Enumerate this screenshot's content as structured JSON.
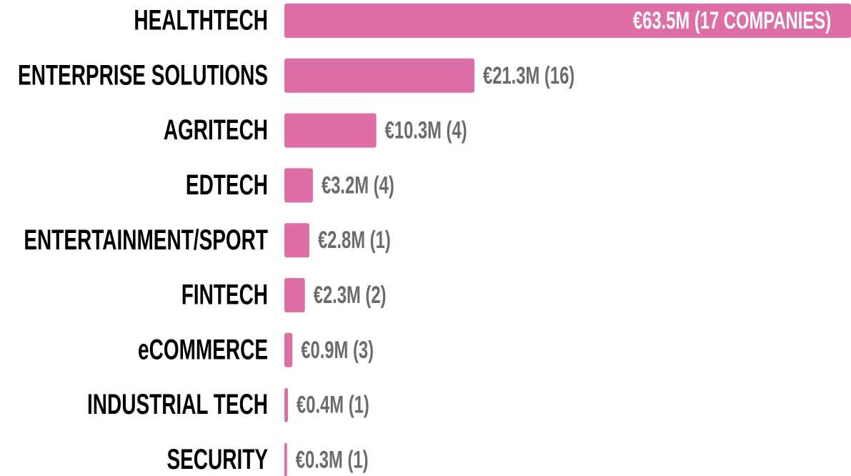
{
  "chart_data": {
    "type": "barh",
    "categories": [
      "HEALTHTECH",
      "ENTERPRISE SOLUTIONS",
      "AGRITECH",
      "EDTECH",
      "ENTERTAINMENT/SPORT",
      "FINTECH",
      "eCOMMERCE",
      "INDUSTRIAL TECH",
      "SECURITY"
    ],
    "values": [
      63.5,
      21.3,
      10.3,
      3.2,
      2.8,
      2.3,
      0.9,
      0.4,
      0.3
    ],
    "value_labels": [
      "€63.5M (17 COMPANIES)",
      "€21.3M (16)",
      "€10.3M (4)",
      "€3.2M (4)",
      "€2.8M (1)",
      "€2.3M (2)",
      "€0.9M (3)",
      "€0.4M (1)",
      "€0.3M (1)"
    ],
    "color": "#de6fa6",
    "xlim": [
      0,
      63.5
    ]
  }
}
